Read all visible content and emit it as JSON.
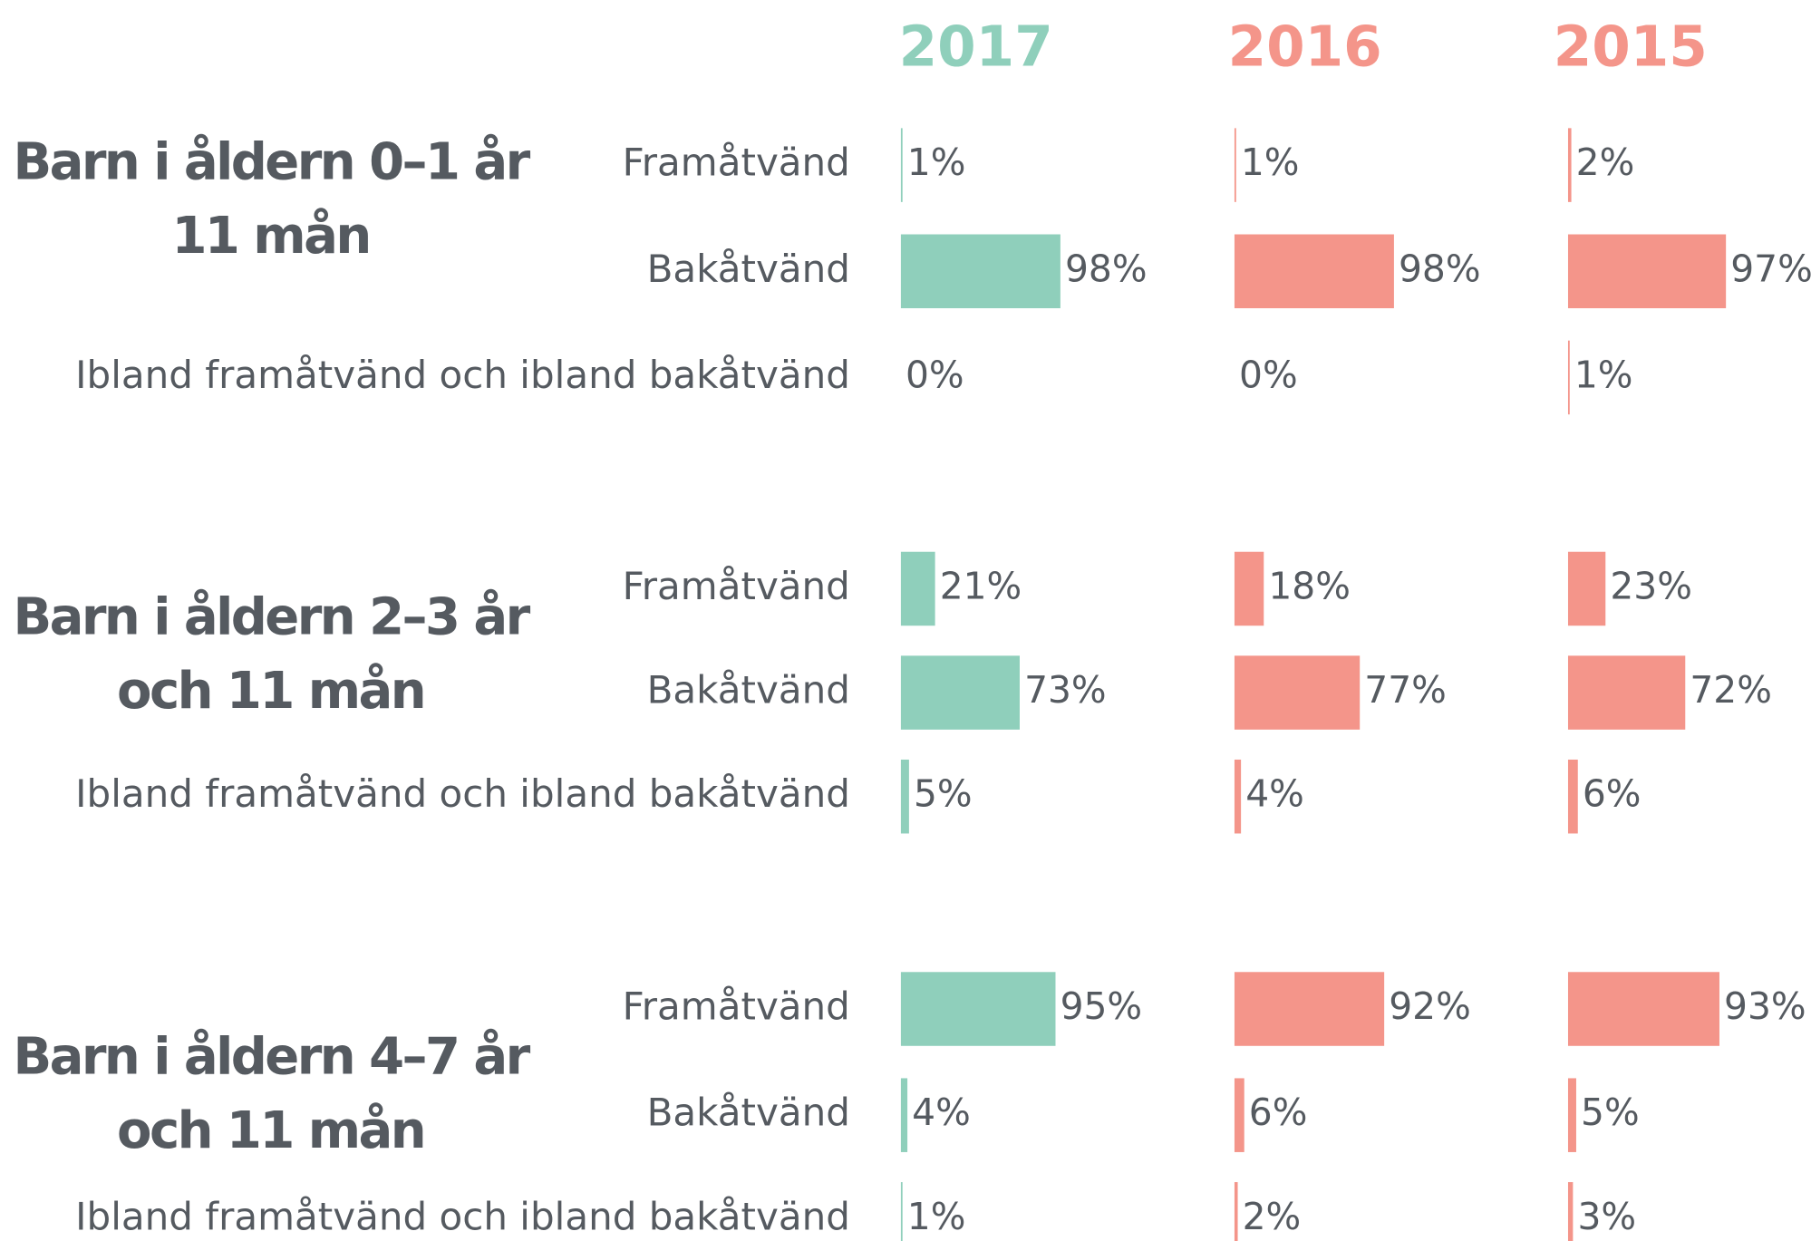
{
  "chart_data": {
    "type": "bar",
    "xlim": [
      0,
      100
    ],
    "series": [
      {
        "name": "2017",
        "color": "#8fcfbb"
      },
      {
        "name": "2016",
        "color": "#f4958a"
      },
      {
        "name": "2015",
        "color": "#f4958a"
      }
    ],
    "groups": [
      {
        "title": [
          "Barn i åldern 0–1 år",
          "11 mån"
        ],
        "categories": [
          "Framåtvänd",
          "Bakåtvänd",
          "Ibland framåtvänd och ibland bakåtvänd"
        ],
        "values": [
          [
            1,
            98,
            0
          ],
          [
            1,
            98,
            0
          ],
          [
            2,
            97,
            1
          ]
        ],
        "value_labels": [
          [
            "1%",
            "98%",
            "0%"
          ],
          [
            "1%",
            "98%",
            "0%"
          ],
          [
            "2%",
            "97%",
            "1%"
          ]
        ]
      },
      {
        "title": [
          "Barn i åldern 2–3 år",
          "och 11 mån"
        ],
        "categories": [
          "Framåtvänd",
          "Bakåtvänd",
          "Ibland framåtvänd och ibland bakåtvänd"
        ],
        "values": [
          [
            21,
            73,
            5
          ],
          [
            18,
            77,
            4
          ],
          [
            23,
            72,
            6
          ]
        ],
        "value_labels": [
          [
            "21%",
            "73%",
            "5%"
          ],
          [
            "18%",
            "77%",
            "4%"
          ],
          [
            "23%",
            "72%",
            "6%"
          ]
        ]
      },
      {
        "title": [
          "Barn i åldern 4–7 år",
          "och 11 mån"
        ],
        "categories": [
          "Framåtvänd",
          "Bakåtvänd",
          "Ibland framåtvänd och ibland bakåtvänd"
        ],
        "values": [
          [
            95,
            4,
            1
          ],
          [
            92,
            6,
            2
          ],
          [
            93,
            5,
            3
          ]
        ],
        "value_labels": [
          [
            "95%",
            "4%",
            "1%"
          ],
          [
            "92%",
            "6%",
            "2%"
          ],
          [
            "93%",
            "5%",
            "3%"
          ]
        ]
      }
    ]
  }
}
